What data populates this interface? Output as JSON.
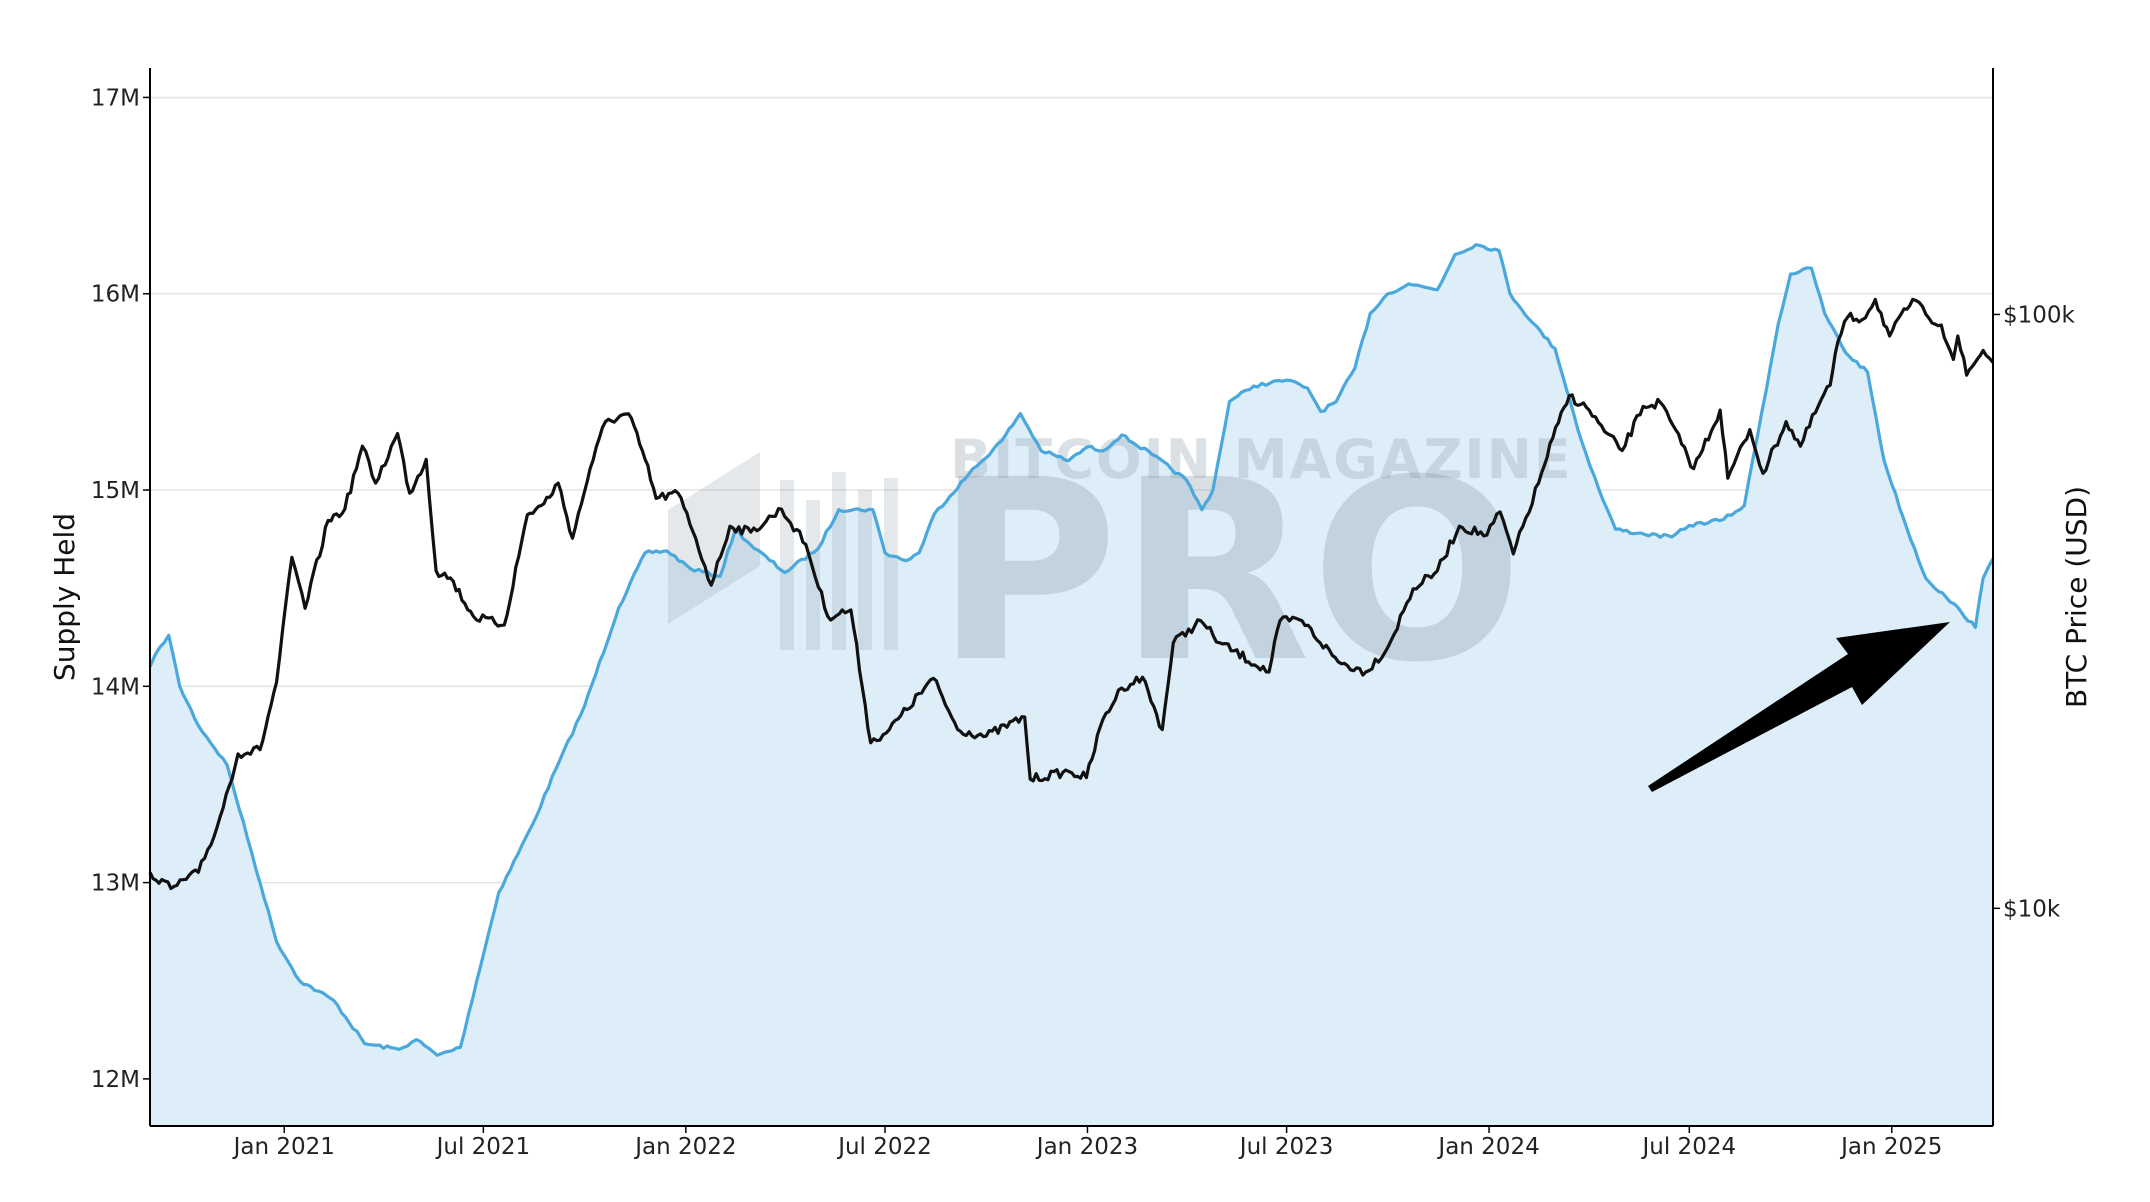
{
  "chart_data": {
    "type": "line",
    "title": "",
    "watermark": {
      "line1": "BITCOIN MAGAZINE",
      "line2": "PRO"
    },
    "x_start": "2020-09-01",
    "x_end": "2025-04-03",
    "x_tick_labels": [
      {
        "date": "2021-01-01",
        "label": "Jan 2021"
      },
      {
        "date": "2021-07-01",
        "label": "Jul 2021"
      },
      {
        "date": "2022-01-01",
        "label": "Jan 2022"
      },
      {
        "date": "2022-07-01",
        "label": "Jul 2022"
      },
      {
        "date": "2023-01-01",
        "label": "Jan 2023"
      },
      {
        "date": "2023-07-01",
        "label": "Jul 2023"
      },
      {
        "date": "2024-01-01",
        "label": "Jan 2024"
      },
      {
        "date": "2024-07-01",
        "label": "Jul 2024"
      },
      {
        "date": "2025-01-01",
        "label": "Jan 2025"
      }
    ],
    "y_left": {
      "label": "Supply Held",
      "range": [
        11760000,
        17150000
      ],
      "ticks": [
        {
          "value": 12000000,
          "label": "12M"
        },
        {
          "value": 13000000,
          "label": "13M"
        },
        {
          "value": 14000000,
          "label": "14M"
        },
        {
          "value": 15000000,
          "label": "15M"
        },
        {
          "value": 16000000,
          "label": "16M"
        },
        {
          "value": 17000000,
          "label": "17M"
        }
      ]
    },
    "y_right": {
      "label": "BTC Price (USD)",
      "scale": "log",
      "range": [
        4300,
        260000
      ],
      "ticks": [
        {
          "value": 10000,
          "label": "$10k"
        },
        {
          "value": 100000,
          "label": "$100k"
        }
      ]
    },
    "grid": true,
    "series": [
      {
        "name": "",
        "axis": "left",
        "color": "#4aa8dc",
        "fill": "#ddeef9",
        "points": [
          [
            "2020-09-01",
            14100000
          ],
          [
            "2020-09-10",
            14200000
          ],
          [
            "2020-09-18",
            14260000
          ],
          [
            "2020-09-28",
            14000000
          ],
          [
            "2020-10-15",
            13800000
          ],
          [
            "2020-11-10",
            13600000
          ],
          [
            "2020-12-10",
            13000000
          ],
          [
            "2020-12-25",
            12700000
          ],
          [
            "2021-01-15",
            12500000
          ],
          [
            "2021-02-15",
            12400000
          ],
          [
            "2021-03-15",
            12180000
          ],
          [
            "2021-04-15",
            12150000
          ],
          [
            "2021-05-01",
            12200000
          ],
          [
            "2021-05-20",
            12120000
          ],
          [
            "2021-06-10",
            12160000
          ],
          [
            "2021-06-25",
            12500000
          ],
          [
            "2021-07-15",
            12950000
          ],
          [
            "2021-08-15",
            13300000
          ],
          [
            "2021-09-05",
            13580000
          ],
          [
            "2021-10-01",
            13900000
          ],
          [
            "2021-11-01",
            14400000
          ],
          [
            "2021-11-25",
            14680000
          ],
          [
            "2021-12-15",
            14690000
          ],
          [
            "2022-01-05",
            14600000
          ],
          [
            "2022-02-01",
            14560000
          ],
          [
            "2022-02-15",
            14800000
          ],
          [
            "2022-03-01",
            14720000
          ],
          [
            "2022-04-01",
            14580000
          ],
          [
            "2022-05-01",
            14700000
          ],
          [
            "2022-05-20",
            14900000
          ],
          [
            "2022-06-20",
            14900000
          ],
          [
            "2022-07-01",
            14680000
          ],
          [
            "2022-07-20",
            14640000
          ],
          [
            "2022-08-01",
            14680000
          ],
          [
            "2022-08-15",
            14880000
          ],
          [
            "2022-09-15",
            15080000
          ],
          [
            "2022-10-15",
            15250000
          ],
          [
            "2022-11-01",
            15390000
          ],
          [
            "2022-11-20",
            15200000
          ],
          [
            "2022-12-15",
            15150000
          ],
          [
            "2023-01-01",
            15220000
          ],
          [
            "2023-01-15",
            15200000
          ],
          [
            "2023-02-01",
            15280000
          ],
          [
            "2023-03-01",
            15180000
          ],
          [
            "2023-04-01",
            15050000
          ],
          [
            "2023-04-15",
            14900000
          ],
          [
            "2023-04-25",
            15000000
          ],
          [
            "2023-05-10",
            15450000
          ],
          [
            "2023-06-01",
            15530000
          ],
          [
            "2023-07-01",
            15560000
          ],
          [
            "2023-07-20",
            15520000
          ],
          [
            "2023-08-01",
            15400000
          ],
          [
            "2023-08-15",
            15450000
          ],
          [
            "2023-09-01",
            15620000
          ],
          [
            "2023-09-15",
            15900000
          ],
          [
            "2023-10-01",
            16000000
          ],
          [
            "2023-10-20",
            16050000
          ],
          [
            "2023-11-15",
            16020000
          ],
          [
            "2023-12-01",
            16200000
          ],
          [
            "2023-12-20",
            16250000
          ],
          [
            "2024-01-10",
            16220000
          ],
          [
            "2024-01-20",
            16000000
          ],
          [
            "2024-02-10",
            15850000
          ],
          [
            "2024-03-01",
            15720000
          ],
          [
            "2024-03-25",
            15250000
          ],
          [
            "2024-04-10",
            15000000
          ],
          [
            "2024-04-25",
            14800000
          ],
          [
            "2024-05-15",
            14780000
          ],
          [
            "2024-06-15",
            14760000
          ],
          [
            "2024-07-01",
            14820000
          ],
          [
            "2024-08-01",
            14850000
          ],
          [
            "2024-08-20",
            14920000
          ],
          [
            "2024-09-05",
            15400000
          ],
          [
            "2024-09-20",
            15850000
          ],
          [
            "2024-10-01",
            16100000
          ],
          [
            "2024-10-20",
            16130000
          ],
          [
            "2024-11-01",
            15900000
          ],
          [
            "2024-11-20",
            15700000
          ],
          [
            "2024-12-10",
            15600000
          ],
          [
            "2024-12-25",
            15150000
          ],
          [
            "2025-01-15",
            14800000
          ],
          [
            "2025-02-01",
            14550000
          ],
          [
            "2025-02-20",
            14450000
          ],
          [
            "2025-03-05",
            14380000
          ],
          [
            "2025-03-18",
            14300000
          ],
          [
            "2025-03-25",
            14550000
          ],
          [
            "2025-04-03",
            14650000
          ]
        ]
      },
      {
        "name": "",
        "axis": "right",
        "color": "#111111",
        "points": [
          [
            "2020-09-01",
            11500
          ],
          [
            "2020-09-20",
            10800
          ],
          [
            "2020-10-15",
            11500
          ],
          [
            "2020-11-01",
            13700
          ],
          [
            "2020-11-20",
            18200
          ],
          [
            "2020-12-10",
            18500
          ],
          [
            "2020-12-25",
            24000
          ],
          [
            "2021-01-08",
            39000
          ],
          [
            "2021-01-20",
            32000
          ],
          [
            "2021-02-10",
            45000
          ],
          [
            "2021-02-25",
            47000
          ],
          [
            "2021-03-13",
            60000
          ],
          [
            "2021-03-25",
            52000
          ],
          [
            "2021-04-14",
            63000
          ],
          [
            "2021-04-25",
            50000
          ],
          [
            "2021-05-10",
            57000
          ],
          [
            "2021-05-19",
            37000
          ],
          [
            "2021-06-01",
            36000
          ],
          [
            "2021-06-22",
            31000
          ],
          [
            "2021-07-20",
            30000
          ],
          [
            "2021-08-10",
            46000
          ],
          [
            "2021-08-25",
            48000
          ],
          [
            "2021-09-07",
            52000
          ],
          [
            "2021-09-20",
            42000
          ],
          [
            "2021-10-06",
            55000
          ],
          [
            "2021-10-20",
            66000
          ],
          [
            "2021-11-10",
            68000
          ],
          [
            "2021-11-25",
            57000
          ],
          [
            "2021-12-05",
            49000
          ],
          [
            "2021-12-25",
            50000
          ],
          [
            "2022-01-10",
            42000
          ],
          [
            "2022-01-24",
            35000
          ],
          [
            "2022-02-10",
            44000
          ],
          [
            "2022-03-01",
            43000
          ],
          [
            "2022-03-29",
            47000
          ],
          [
            "2022-04-20",
            41000
          ],
          [
            "2022-05-10",
            31000
          ],
          [
            "2022-05-31",
            31800
          ],
          [
            "2022-06-13",
            22000
          ],
          [
            "2022-06-18",
            19000
          ],
          [
            "2022-07-05",
            20000
          ],
          [
            "2022-08-14",
            24400
          ],
          [
            "2022-09-05",
            20000
          ],
          [
            "2022-10-01",
            19500
          ],
          [
            "2022-11-05",
            21000
          ],
          [
            "2022-11-10",
            16500
          ],
          [
            "2022-12-15",
            17000
          ],
          [
            "2022-12-31",
            16600
          ],
          [
            "2023-01-15",
            20800
          ],
          [
            "2023-02-01",
            23500
          ],
          [
            "2023-02-20",
            24500
          ],
          [
            "2023-03-10",
            20000
          ],
          [
            "2023-03-20",
            28000
          ],
          [
            "2023-04-14",
            30500
          ],
          [
            "2023-05-01",
            28000
          ],
          [
            "2023-06-15",
            25000
          ],
          [
            "2023-06-25",
            30500
          ],
          [
            "2023-07-15",
            30500
          ],
          [
            "2023-08-17",
            26000
          ],
          [
            "2023-09-11",
            25000
          ],
          [
            "2023-10-01",
            27500
          ],
          [
            "2023-10-24",
            34500
          ],
          [
            "2023-11-15",
            37000
          ],
          [
            "2023-12-05",
            44000
          ],
          [
            "2023-12-30",
            42500
          ],
          [
            "2024-01-11",
            46500
          ],
          [
            "2024-01-23",
            39500
          ],
          [
            "2024-02-15",
            52000
          ],
          [
            "2024-02-28",
            62000
          ],
          [
            "2024-03-14",
            73000
          ],
          [
            "2024-04-01",
            69000
          ],
          [
            "2024-04-15",
            63500
          ],
          [
            "2024-05-01",
            59000
          ],
          [
            "2024-05-20",
            70000
          ],
          [
            "2024-06-05",
            71000
          ],
          [
            "2024-06-24",
            60500
          ],
          [
            "2024-07-05",
            55000
          ],
          [
            "2024-07-29",
            69000
          ],
          [
            "2024-08-05",
            53000
          ],
          [
            "2024-08-25",
            64000
          ],
          [
            "2024-09-06",
            54000
          ],
          [
            "2024-09-27",
            66000
          ],
          [
            "2024-10-10",
            60000
          ],
          [
            "2024-10-29",
            72000
          ],
          [
            "2024-11-06",
            76000
          ],
          [
            "2024-11-13",
            90000
          ],
          [
            "2024-11-22",
            99000
          ],
          [
            "2024-12-05",
            98000
          ],
          [
            "2024-12-17",
            106000
          ],
          [
            "2024-12-30",
            92000
          ],
          [
            "2025-01-20",
            106000
          ],
          [
            "2025-02-01",
            100000
          ],
          [
            "2025-02-15",
            96000
          ],
          [
            "2025-02-26",
            84000
          ],
          [
            "2025-03-02",
            92000
          ],
          [
            "2025-03-10",
            79000
          ],
          [
            "2025-03-25",
            87000
          ],
          [
            "2025-04-03",
            83000
          ]
        ]
      }
    ],
    "annotations": [
      {
        "type": "arrow",
        "color": "#000000",
        "description_free": true
      }
    ]
  }
}
